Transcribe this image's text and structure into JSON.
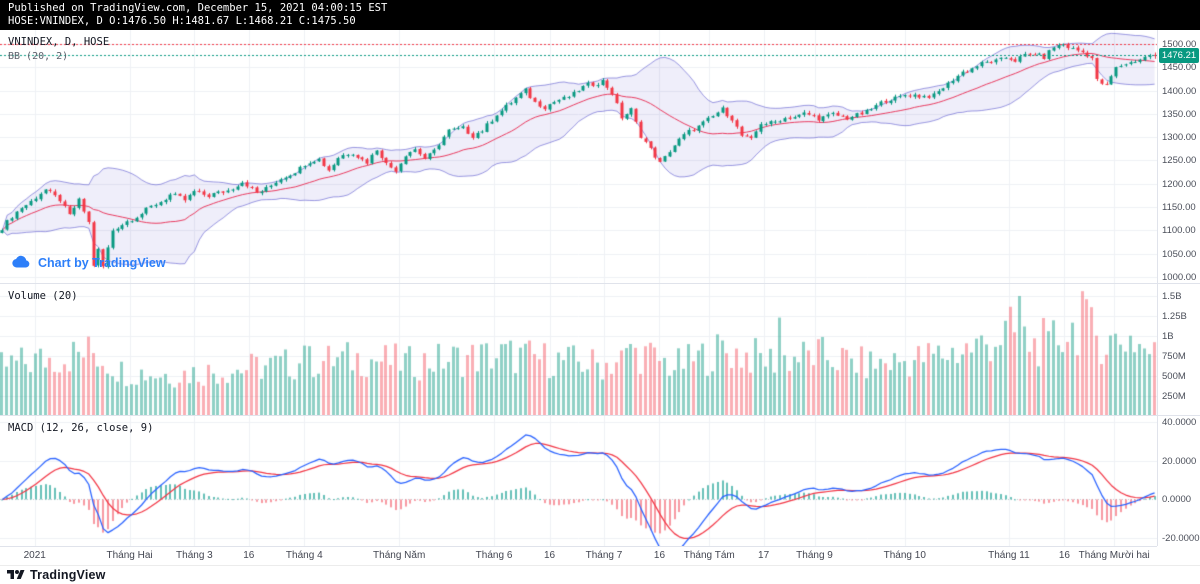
{
  "header": {
    "published_line": "Published on TradingView.com, December 15, 2021 04:00:15 EST",
    "ohlc_line": "HOSE:VNINDEX, D O:1476.50 H:1481.67 L:1468.21 C:1475.50"
  },
  "legends": {
    "price_symbol": "VNINDEX, D, HOSE",
    "price_bb": "BB (20, 2)",
    "volume": "Volume (20)",
    "macd": "MACD (12, 26, close, 9)"
  },
  "watermark": {
    "label": "Chart by TradingView",
    "color": "#2d7ff9"
  },
  "footer": {
    "brand": "TradingView"
  },
  "colors": {
    "up": "#089981",
    "down": "#f23645",
    "vol_up": "rgba(8,153,129,0.45)",
    "vol_down": "rgba(242,54,69,0.40)",
    "bb_fill": "rgba(73,69,200,0.09)",
    "bb_edge": "rgba(73,69,200,0.55)",
    "bb_basis": "#e8385d",
    "macd_line": "#2962ff",
    "macd_signal": "#f23645",
    "hist_up": "rgba(38,166,154,0.70)",
    "hist_down": "rgba(242,54,69,0.50)",
    "grid": "#eef0f5",
    "zero_line": "#c2c5cc",
    "ath_line": "#f23645",
    "last_line": "#089981",
    "badge_bg": "#089981",
    "topbar_bg": "#000000"
  },
  "price_scale": {
    "badge": "1476.21",
    "ticks": [
      {
        "v": 1500,
        "label": "1500.00"
      },
      {
        "v": 1450,
        "label": "1450.00"
      },
      {
        "v": 1400,
        "label": "1400.00"
      },
      {
        "v": 1350,
        "label": "1350.00"
      },
      {
        "v": 1300,
        "label": "1300.00"
      },
      {
        "v": 1250,
        "label": "1250.00"
      },
      {
        "v": 1200,
        "label": "1200.00"
      },
      {
        "v": 1150,
        "label": "1150.00"
      },
      {
        "v": 1100,
        "label": "1100.00"
      },
      {
        "v": 1050,
        "label": "1050.00"
      },
      {
        "v": 1000,
        "label": "1000.00"
      }
    ]
  },
  "volume_scale": {
    "ticks": [
      {
        "v": 1500,
        "label": "1.5B"
      },
      {
        "v": 1250,
        "label": "1.25B"
      },
      {
        "v": 1000,
        "label": "1B"
      },
      {
        "v": 750,
        "label": "750M"
      },
      {
        "v": 500,
        "label": "500M"
      },
      {
        "v": 250,
        "label": "250M"
      }
    ]
  },
  "macd_scale": {
    "ticks": [
      {
        "v": 40,
        "label": "40.0000"
      },
      {
        "v": 20,
        "label": "20.0000"
      },
      {
        "v": 0,
        "label": "0.0000"
      },
      {
        "v": -20,
        "label": "-20.0000"
      }
    ]
  },
  "time_axis": {
    "labels": [
      {
        "text": "2021",
        "f": 0.03
      },
      {
        "text": "Tháng Hai",
        "f": 0.112
      },
      {
        "text": "Tháng 3",
        "f": 0.168
      },
      {
        "text": "16",
        "f": 0.215
      },
      {
        "text": "Tháng 4",
        "f": 0.263
      },
      {
        "text": "Tháng Năm",
        "f": 0.345
      },
      {
        "text": "Tháng 6",
        "f": 0.427
      },
      {
        "text": "16",
        "f": 0.475
      },
      {
        "text": "Tháng 7",
        "f": 0.522
      },
      {
        "text": "16",
        "f": 0.57
      },
      {
        "text": "Tháng Tám",
        "f": 0.613
      },
      {
        "text": "17",
        "f": 0.66
      },
      {
        "text": "Tháng 9",
        "f": 0.704
      },
      {
        "text": "Tháng 10",
        "f": 0.782
      },
      {
        "text": "Tháng 11",
        "f": 0.872
      },
      {
        "text": "16",
        "f": 0.92
      },
      {
        "text": "Tháng Mười hai",
        "f": 0.963
      }
    ]
  },
  "chart_data": {
    "type": "candlestick",
    "title": "VNINDEX, D, HOSE",
    "panes": [
      "price+bollinger(20,2)",
      "volume(20)",
      "macd(12,26,close,9)"
    ],
    "days": 241,
    "last_bar": {
      "o": 1476.5,
      "h": 1481.67,
      "l": 1468.21,
      "c": 1475.5
    },
    "last_price": 1476.21,
    "ath_level": 1500.8,
    "price_axis": {
      "min": 985,
      "max": 1530
    },
    "volume_axis_millions": {
      "min": 0,
      "max": 1650
    },
    "macd_axis": {
      "min": -24,
      "max": 43
    },
    "indicators": {
      "bb_length": 20,
      "bb_mult": 2,
      "macd_fast": 12,
      "macd_slow": 26,
      "macd_signal": 9,
      "vol_ma": 20
    },
    "close_anchors": [
      [
        0,
        1105
      ],
      [
        4,
        1150
      ],
      [
        9,
        1185
      ],
      [
        12,
        1168
      ],
      [
        14,
        1132
      ],
      [
        16,
        1162
      ],
      [
        18,
        1118
      ],
      [
        19,
        1028
      ],
      [
        20,
        1060
      ],
      [
        21,
        1022
      ],
      [
        23,
        1098
      ],
      [
        26,
        1122
      ],
      [
        29,
        1134
      ],
      [
        32,
        1158
      ],
      [
        35,
        1176
      ],
      [
        38,
        1164
      ],
      [
        40,
        1186
      ],
      [
        43,
        1172
      ],
      [
        47,
        1188
      ],
      [
        50,
        1202
      ],
      [
        53,
        1182
      ],
      [
        56,
        1196
      ],
      [
        60,
        1222
      ],
      [
        63,
        1242
      ],
      [
        66,
        1252
      ],
      [
        68,
        1232
      ],
      [
        70,
        1256
      ],
      [
        73,
        1266
      ],
      [
        76,
        1248
      ],
      [
        78,
        1272
      ],
      [
        80,
        1242
      ],
      [
        82,
        1232
      ],
      [
        84,
        1262
      ],
      [
        86,
        1272
      ],
      [
        88,
        1256
      ],
      [
        90,
        1272
      ],
      [
        93,
        1312
      ],
      [
        96,
        1322
      ],
      [
        98,
        1302
      ],
      [
        100,
        1312
      ],
      [
        103,
        1352
      ],
      [
        106,
        1372
      ],
      [
        109,
        1402
      ],
      [
        111,
        1376
      ],
      [
        113,
        1362
      ],
      [
        116,
        1382
      ],
      [
        119,
        1392
      ],
      [
        122,
        1412
      ],
      [
        125,
        1422
      ],
      [
        127,
        1392
      ],
      [
        129,
        1342
      ],
      [
        131,
        1362
      ],
      [
        133,
        1302
      ],
      [
        135,
        1272
      ],
      [
        137,
        1246
      ],
      [
        139,
        1272
      ],
      [
        141,
        1292
      ],
      [
        143,
        1312
      ],
      [
        146,
        1332
      ],
      [
        148,
        1342
      ],
      [
        150,
        1360
      ],
      [
        152,
        1342
      ],
      [
        154,
        1302
      ],
      [
        156,
        1292
      ],
      [
        158,
        1332
      ],
      [
        161,
        1332
      ],
      [
        164,
        1342
      ],
      [
        167,
        1352
      ],
      [
        170,
        1338
      ],
      [
        173,
        1352
      ],
      [
        176,
        1338
      ],
      [
        179,
        1352
      ],
      [
        182,
        1366
      ],
      [
        185,
        1382
      ],
      [
        188,
        1392
      ],
      [
        191,
        1386
      ],
      [
        194,
        1392
      ],
      [
        197,
        1412
      ],
      [
        200,
        1442
      ],
      [
        203,
        1452
      ],
      [
        206,
        1462
      ],
      [
        209,
        1472
      ],
      [
        211,
        1462
      ],
      [
        213,
        1476
      ],
      [
        215,
        1482
      ],
      [
        217,
        1470
      ],
      [
        219,
        1492
      ],
      [
        221,
        1501
      ],
      [
        223,
        1490
      ],
      [
        225,
        1480
      ],
      [
        227,
        1470
      ],
      [
        228,
        1424
      ],
      [
        230,
        1412
      ],
      [
        232,
        1446
      ],
      [
        234,
        1458
      ],
      [
        236,
        1466
      ],
      [
        238,
        1470
      ],
      [
        240,
        1475.5
      ]
    ],
    "volume_anchors_millions": [
      [
        0,
        620
      ],
      [
        10,
        720
      ],
      [
        19,
        800
      ],
      [
        25,
        560
      ],
      [
        35,
        520
      ],
      [
        45,
        560
      ],
      [
        55,
        620
      ],
      [
        65,
        680
      ],
      [
        75,
        720
      ],
      [
        85,
        660
      ],
      [
        95,
        720
      ],
      [
        105,
        760
      ],
      [
        115,
        700
      ],
      [
        125,
        640
      ],
      [
        133,
        780
      ],
      [
        140,
        620
      ],
      [
        150,
        820
      ],
      [
        160,
        700
      ],
      [
        170,
        760
      ],
      [
        180,
        640
      ],
      [
        190,
        700
      ],
      [
        200,
        820
      ],
      [
        205,
        900
      ],
      [
        210,
        1050
      ],
      [
        215,
        880
      ],
      [
        220,
        980
      ],
      [
        225,
        1150
      ],
      [
        230,
        920
      ],
      [
        235,
        980
      ],
      [
        240,
        760
      ]
    ],
    "volume_spikes_millions": [
      [
        162,
        1230
      ],
      [
        212,
        1500
      ],
      [
        225,
        1560
      ],
      [
        218,
        1060
      ],
      [
        131,
        900
      ],
      [
        63,
        880
      ]
    ]
  }
}
